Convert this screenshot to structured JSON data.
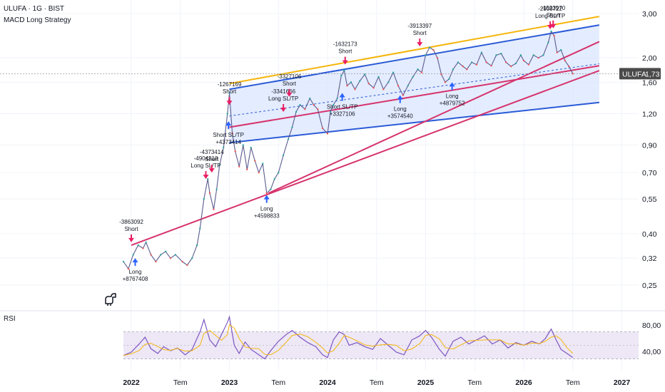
{
  "header": {
    "title": "ULUFA · 1G · BIST",
    "subtitle": "MACD Long Strategy"
  },
  "price_badge": {
    "symbol": "ULUFA",
    "value": "1,73",
    "value_num": 1.73,
    "badge_color": "#4a4a4a"
  },
  "rsi": {
    "label": "RSI",
    "ticks": [
      "80,00",
      "40,00"
    ],
    "upper_band": 70,
    "lower_band": 30
  },
  "colors": {
    "long_arrow": "#2962ff",
    "short_arrow": "#e91e63",
    "channel_fill": "#dbe5ff",
    "channel_line": "#2a5bd7",
    "upper_trend": "#f5b50a",
    "pink_line": "#d6336c",
    "price_line": "#5b5b8f",
    "rsi_line": "#7e57c2",
    "rsi_ma": "#f5b50a",
    "rsi_band": "#ede7f6"
  },
  "chart_data": {
    "type": "line",
    "symbol": "ULUFA",
    "y_scale": "log",
    "ylim": [
      0.22,
      3.2
    ],
    "y_ticks": [
      {
        "value": 3.0,
        "label": "3,00"
      },
      {
        "value": 2.0,
        "label": "2,00"
      },
      {
        "value": 1.6,
        "label": "1,60"
      },
      {
        "value": 1.2,
        "label": "1,20"
      },
      {
        "value": 0.9,
        "label": "0,90"
      },
      {
        "value": 0.7,
        "label": "0,70"
      },
      {
        "value": 0.55,
        "label": "0,55"
      },
      {
        "value": 0.4,
        "label": "0,40"
      },
      {
        "value": 0.32,
        "label": "0,32"
      },
      {
        "value": 0.25,
        "label": "0,25"
      }
    ],
    "x_ticks": [
      {
        "t": 2022.0,
        "label": "2022",
        "bold": true
      },
      {
        "t": 2022.5,
        "label": "Tem",
        "bold": false
      },
      {
        "t": 2023.0,
        "label": "2023",
        "bold": true
      },
      {
        "t": 2023.5,
        "label": "Tem",
        "bold": false
      },
      {
        "t": 2024.0,
        "label": "2024",
        "bold": true
      },
      {
        "t": 2024.5,
        "label": "Tem",
        "bold": false
      },
      {
        "t": 2025.0,
        "label": "2025",
        "bold": true
      },
      {
        "t": 2025.5,
        "label": "Tem",
        "bold": false
      },
      {
        "t": 2026.0,
        "label": "2026",
        "bold": true
      },
      {
        "t": 2026.5,
        "label": "Tem",
        "bold": false
      },
      {
        "t": 2027.0,
        "label": "2027",
        "bold": true
      }
    ],
    "price_series": {
      "name": "",
      "points": [
        [
          2021.92,
          0.31
        ],
        [
          2021.97,
          0.29
        ],
        [
          2022.02,
          0.33
        ],
        [
          2022.07,
          0.36
        ],
        [
          2022.12,
          0.35
        ],
        [
          2022.15,
          0.37
        ],
        [
          2022.2,
          0.33
        ],
        [
          2022.25,
          0.31
        ],
        [
          2022.3,
          0.33
        ],
        [
          2022.35,
          0.34
        ],
        [
          2022.4,
          0.32
        ],
        [
          2022.45,
          0.33
        ],
        [
          2022.52,
          0.31
        ],
        [
          2022.57,
          0.3
        ],
        [
          2022.62,
          0.32
        ],
        [
          2022.67,
          0.36
        ],
        [
          2022.7,
          0.42
        ],
        [
          2022.74,
          0.55
        ],
        [
          2022.78,
          0.66
        ],
        [
          2022.8,
          0.58
        ],
        [
          2022.84,
          0.5
        ],
        [
          2022.87,
          0.6
        ],
        [
          2022.9,
          0.75
        ],
        [
          2022.94,
          0.88
        ],
        [
          2022.98,
          1.2
        ],
        [
          2023.0,
          1.45
        ],
        [
          2023.03,
          1.0
        ],
        [
          2023.06,
          0.85
        ],
        [
          2023.1,
          0.74
        ],
        [
          2023.14,
          0.9
        ],
        [
          2023.18,
          0.72
        ],
        [
          2023.22,
          0.88
        ],
        [
          2023.26,
          0.78
        ],
        [
          2023.3,
          0.7
        ],
        [
          2023.34,
          0.76
        ],
        [
          2023.38,
          0.58
        ],
        [
          2023.42,
          0.6
        ],
        [
          2023.46,
          0.66
        ],
        [
          2023.5,
          0.7
        ],
        [
          2023.55,
          0.82
        ],
        [
          2023.6,
          0.95
        ],
        [
          2023.64,
          1.06
        ],
        [
          2023.68,
          1.22
        ],
        [
          2023.72,
          1.3
        ],
        [
          2023.77,
          1.25
        ],
        [
          2023.82,
          1.38
        ],
        [
          2023.86,
          1.3
        ],
        [
          2023.9,
          1.25
        ],
        [
          2023.95,
          1.05
        ],
        [
          2024.0,
          1.0
        ],
        [
          2024.03,
          1.22
        ],
        [
          2024.06,
          1.3
        ],
        [
          2024.1,
          1.38
        ],
        [
          2024.14,
          1.7
        ],
        [
          2024.17,
          1.78
        ],
        [
          2024.2,
          1.55
        ],
        [
          2024.24,
          1.6
        ],
        [
          2024.28,
          1.5
        ],
        [
          2024.33,
          1.62
        ],
        [
          2024.38,
          1.72
        ],
        [
          2024.42,
          1.58
        ],
        [
          2024.47,
          1.52
        ],
        [
          2024.52,
          1.68
        ],
        [
          2024.57,
          1.5
        ],
        [
          2024.62,
          1.6
        ],
        [
          2024.67,
          1.75
        ],
        [
          2024.72,
          1.55
        ],
        [
          2024.77,
          1.42
        ],
        [
          2024.82,
          1.55
        ],
        [
          2024.87,
          1.68
        ],
        [
          2024.92,
          1.8
        ],
        [
          2024.96,
          1.75
        ],
        [
          2025.0,
          2.05
        ],
        [
          2025.04,
          2.2
        ],
        [
          2025.08,
          2.15
        ],
        [
          2025.12,
          2.0
        ],
        [
          2025.16,
          1.72
        ],
        [
          2025.2,
          1.6
        ],
        [
          2025.24,
          1.65
        ],
        [
          2025.28,
          1.8
        ],
        [
          2025.33,
          1.92
        ],
        [
          2025.38,
          1.85
        ],
        [
          2025.42,
          1.8
        ],
        [
          2025.47,
          1.92
        ],
        [
          2025.52,
          1.88
        ],
        [
          2025.57,
          2.1
        ],
        [
          2025.62,
          1.92
        ],
        [
          2025.67,
          1.86
        ],
        [
          2025.72,
          2.05
        ],
        [
          2025.77,
          2.08
        ],
        [
          2025.82,
          1.92
        ],
        [
          2025.87,
          1.85
        ],
        [
          2025.92,
          1.9
        ],
        [
          2025.97,
          2.05
        ],
        [
          2026.0,
          1.95
        ],
        [
          2026.05,
          1.88
        ],
        [
          2026.1,
          2.05
        ],
        [
          2026.15,
          2.0
        ],
        [
          2026.2,
          2.05
        ],
        [
          2026.25,
          2.3
        ],
        [
          2026.28,
          2.55
        ],
        [
          2026.31,
          2.45
        ],
        [
          2026.34,
          2.1
        ],
        [
          2026.38,
          2.15
        ],
        [
          2026.42,
          1.95
        ],
        [
          2026.46,
          1.85
        ],
        [
          2026.5,
          1.73
        ]
      ]
    },
    "channel": {
      "upper": [
        [
          2023.0,
          1.5
        ],
        [
          2026.77,
          2.7
        ]
      ],
      "lower": [
        [
          2023.0,
          0.92
        ],
        [
          2026.77,
          1.33
        ]
      ]
    },
    "upper_trendline": [
      [
        2023.0,
        1.58
      ],
      [
        2026.77,
        2.92
      ]
    ],
    "pink_lines": [
      [
        [
          2022.0,
          0.36
        ],
        [
          2026.77,
          1.78
        ]
      ],
      [
        [
          2023.0,
          1.06
        ],
        [
          2026.77,
          1.86
        ]
      ],
      [
        [
          2023.4,
          0.58
        ],
        [
          2026.77,
          2.32
        ]
      ]
    ],
    "signals": [
      {
        "t": 2022.04,
        "price": 0.32,
        "dir": "long",
        "text": [
          "Long",
          "+8767408"
        ]
      },
      {
        "t": 2022.0,
        "price": 0.37,
        "dir": "short",
        "text": [
          "-3863092",
          "Short"
        ]
      },
      {
        "t": 2022.76,
        "price": 0.66,
        "dir": "short",
        "text": [
          "-4904318",
          "Long SL/TP"
        ]
      },
      {
        "t": 2022.82,
        "price": 0.7,
        "dir": "short",
        "text": [
          "-4373414",
          "Short"
        ]
      },
      {
        "t": 2022.99,
        "price": 1.12,
        "dir": "long",
        "text": [
          "Short SL/TP",
          "+4373414"
        ]
      },
      {
        "t": 2023.0,
        "price": 1.3,
        "dir": "short",
        "text": [
          "-1267169",
          "Short"
        ]
      },
      {
        "t": 2023.38,
        "price": 0.57,
        "dir": "long",
        "text": [
          "Long",
          "+4598833"
        ]
      },
      {
        "t": 2023.55,
        "price": 1.22,
        "dir": "short",
        "text": [
          "-3341666",
          "Long SL/TP"
        ]
      },
      {
        "t": 2023.61,
        "price": 1.4,
        "dir": "short",
        "text": [
          "-3327106",
          "Short"
        ]
      },
      {
        "t": 2024.18,
        "price": 1.88,
        "dir": "short",
        "text": [
          "-1632173",
          "Short"
        ]
      },
      {
        "t": 2024.15,
        "price": 1.45,
        "dir": "long",
        "text": [
          "Short SL/TP",
          "+3327106"
        ]
      },
      {
        "t": 2024.74,
        "price": 1.42,
        "dir": "long",
        "text": [
          "Long",
          "+3574540"
        ]
      },
      {
        "t": 2024.94,
        "price": 2.22,
        "dir": "short",
        "text": [
          "-3913397",
          "Short"
        ]
      },
      {
        "t": 2025.27,
        "price": 1.6,
        "dir": "long",
        "text": [
          "Long",
          "+4879752"
        ]
      },
      {
        "t": 2026.27,
        "price": 2.6,
        "dir": "short",
        "text": [
          "-2908722",
          "Long SL/TP"
        ]
      },
      {
        "t": 2026.3,
        "price": 2.62,
        "dir": "short",
        "text": [
          "-1523970",
          "Short"
        ]
      }
    ],
    "rsi_series": {
      "name": "RSI",
      "points": [
        [
          2021.92,
          35
        ],
        [
          2022.0,
          40
        ],
        [
          2022.08,
          52
        ],
        [
          2022.14,
          62
        ],
        [
          2022.2,
          45
        ],
        [
          2022.27,
          38
        ],
        [
          2022.33,
          48
        ],
        [
          2022.4,
          42
        ],
        [
          2022.47,
          46
        ],
        [
          2022.55,
          36
        ],
        [
          2022.62,
          44
        ],
        [
          2022.7,
          70
        ],
        [
          2022.74,
          88
        ],
        [
          2022.8,
          58
        ],
        [
          2022.86,
          48
        ],
        [
          2022.92,
          66
        ],
        [
          2022.98,
          84
        ],
        [
          2023.0,
          92
        ],
        [
          2023.05,
          50
        ],
        [
          2023.1,
          38
        ],
        [
          2023.16,
          55
        ],
        [
          2023.22,
          44
        ],
        [
          2023.3,
          36
        ],
        [
          2023.36,
          30
        ],
        [
          2023.42,
          42
        ],
        [
          2023.5,
          56
        ],
        [
          2023.58,
          66
        ],
        [
          2023.64,
          72
        ],
        [
          2023.72,
          62
        ],
        [
          2023.8,
          54
        ],
        [
          2023.88,
          48
        ],
        [
          2023.95,
          36
        ],
        [
          2024.0,
          32
        ],
        [
          2024.06,
          58
        ],
        [
          2024.12,
          70
        ],
        [
          2024.17,
          66
        ],
        [
          2024.22,
          50
        ],
        [
          2024.3,
          54
        ],
        [
          2024.38,
          48
        ],
        [
          2024.46,
          44
        ],
        [
          2024.54,
          60
        ],
        [
          2024.62,
          50
        ],
        [
          2024.7,
          40
        ],
        [
          2024.78,
          36
        ],
        [
          2024.86,
          58
        ],
        [
          2024.94,
          64
        ],
        [
          2025.0,
          72
        ],
        [
          2025.06,
          62
        ],
        [
          2025.14,
          44
        ],
        [
          2025.2,
          34
        ],
        [
          2025.28,
          56
        ],
        [
          2025.36,
          62
        ],
        [
          2025.44,
          52
        ],
        [
          2025.52,
          58
        ],
        [
          2025.6,
          64
        ],
        [
          2025.68,
          52
        ],
        [
          2025.76,
          58
        ],
        [
          2025.84,
          46
        ],
        [
          2025.92,
          54
        ],
        [
          2026.0,
          50
        ],
        [
          2026.08,
          56
        ],
        [
          2026.16,
          52
        ],
        [
          2026.22,
          60
        ],
        [
          2026.28,
          74
        ],
        [
          2026.33,
          58
        ],
        [
          2026.38,
          44
        ],
        [
          2026.44,
          38
        ],
        [
          2026.5,
          32
        ]
      ]
    }
  }
}
